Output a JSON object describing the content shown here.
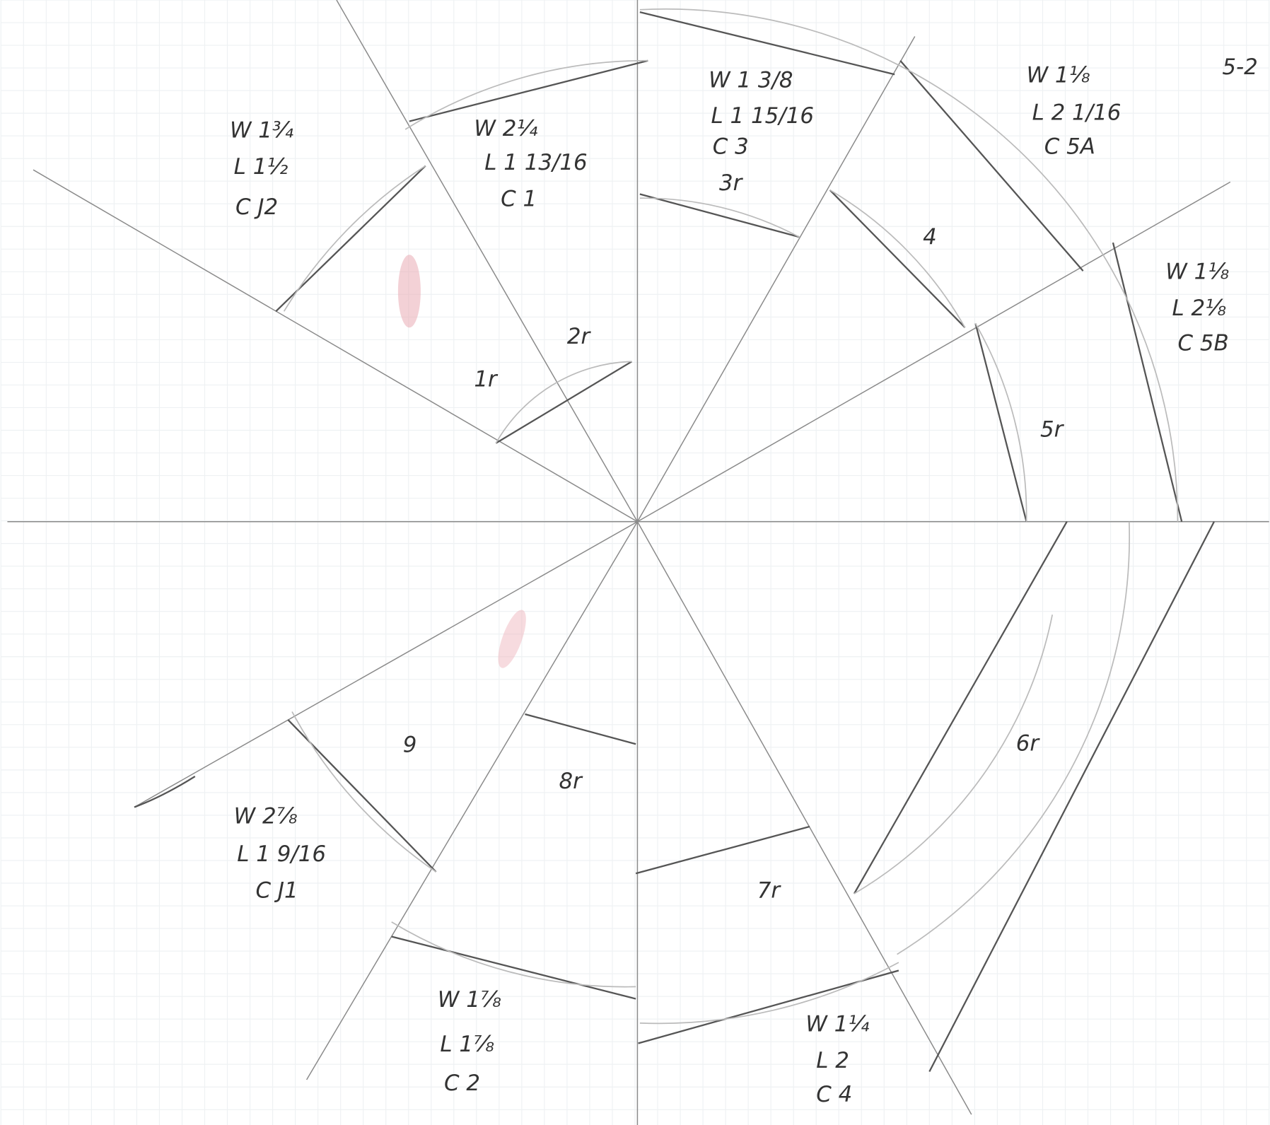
{
  "header": {
    "date": "5-2"
  },
  "pieces": [
    {
      "lines": [
        "W 1¾",
        "L 1½",
        "C J2"
      ]
    },
    {
      "lines": [
        "W 2¼",
        "L 1 13/16",
        "C 1"
      ]
    },
    {
      "lines": [
        "W 1 3/8",
        "L 1 15/16",
        "C 3",
        "3r"
      ]
    },
    {
      "lines": [
        "W 1⅛",
        "L 2 1/16",
        "C 5A"
      ]
    },
    {
      "lines": [
        "W 1⅛",
        "L 2⅛",
        "C 5B"
      ]
    },
    {
      "lines": [
        "W 2⅞",
        "L 1 9/16",
        "C J1"
      ]
    },
    {
      "lines": [
        "W 1⅞",
        "L 1⅞",
        "C 2"
      ]
    },
    {
      "lines": [
        "W 1¼",
        "L 2",
        "C 4"
      ]
    }
  ],
  "marks": [
    "1r",
    "2r",
    "4",
    "5r",
    "6r",
    "7r",
    "8r",
    "9"
  ]
}
